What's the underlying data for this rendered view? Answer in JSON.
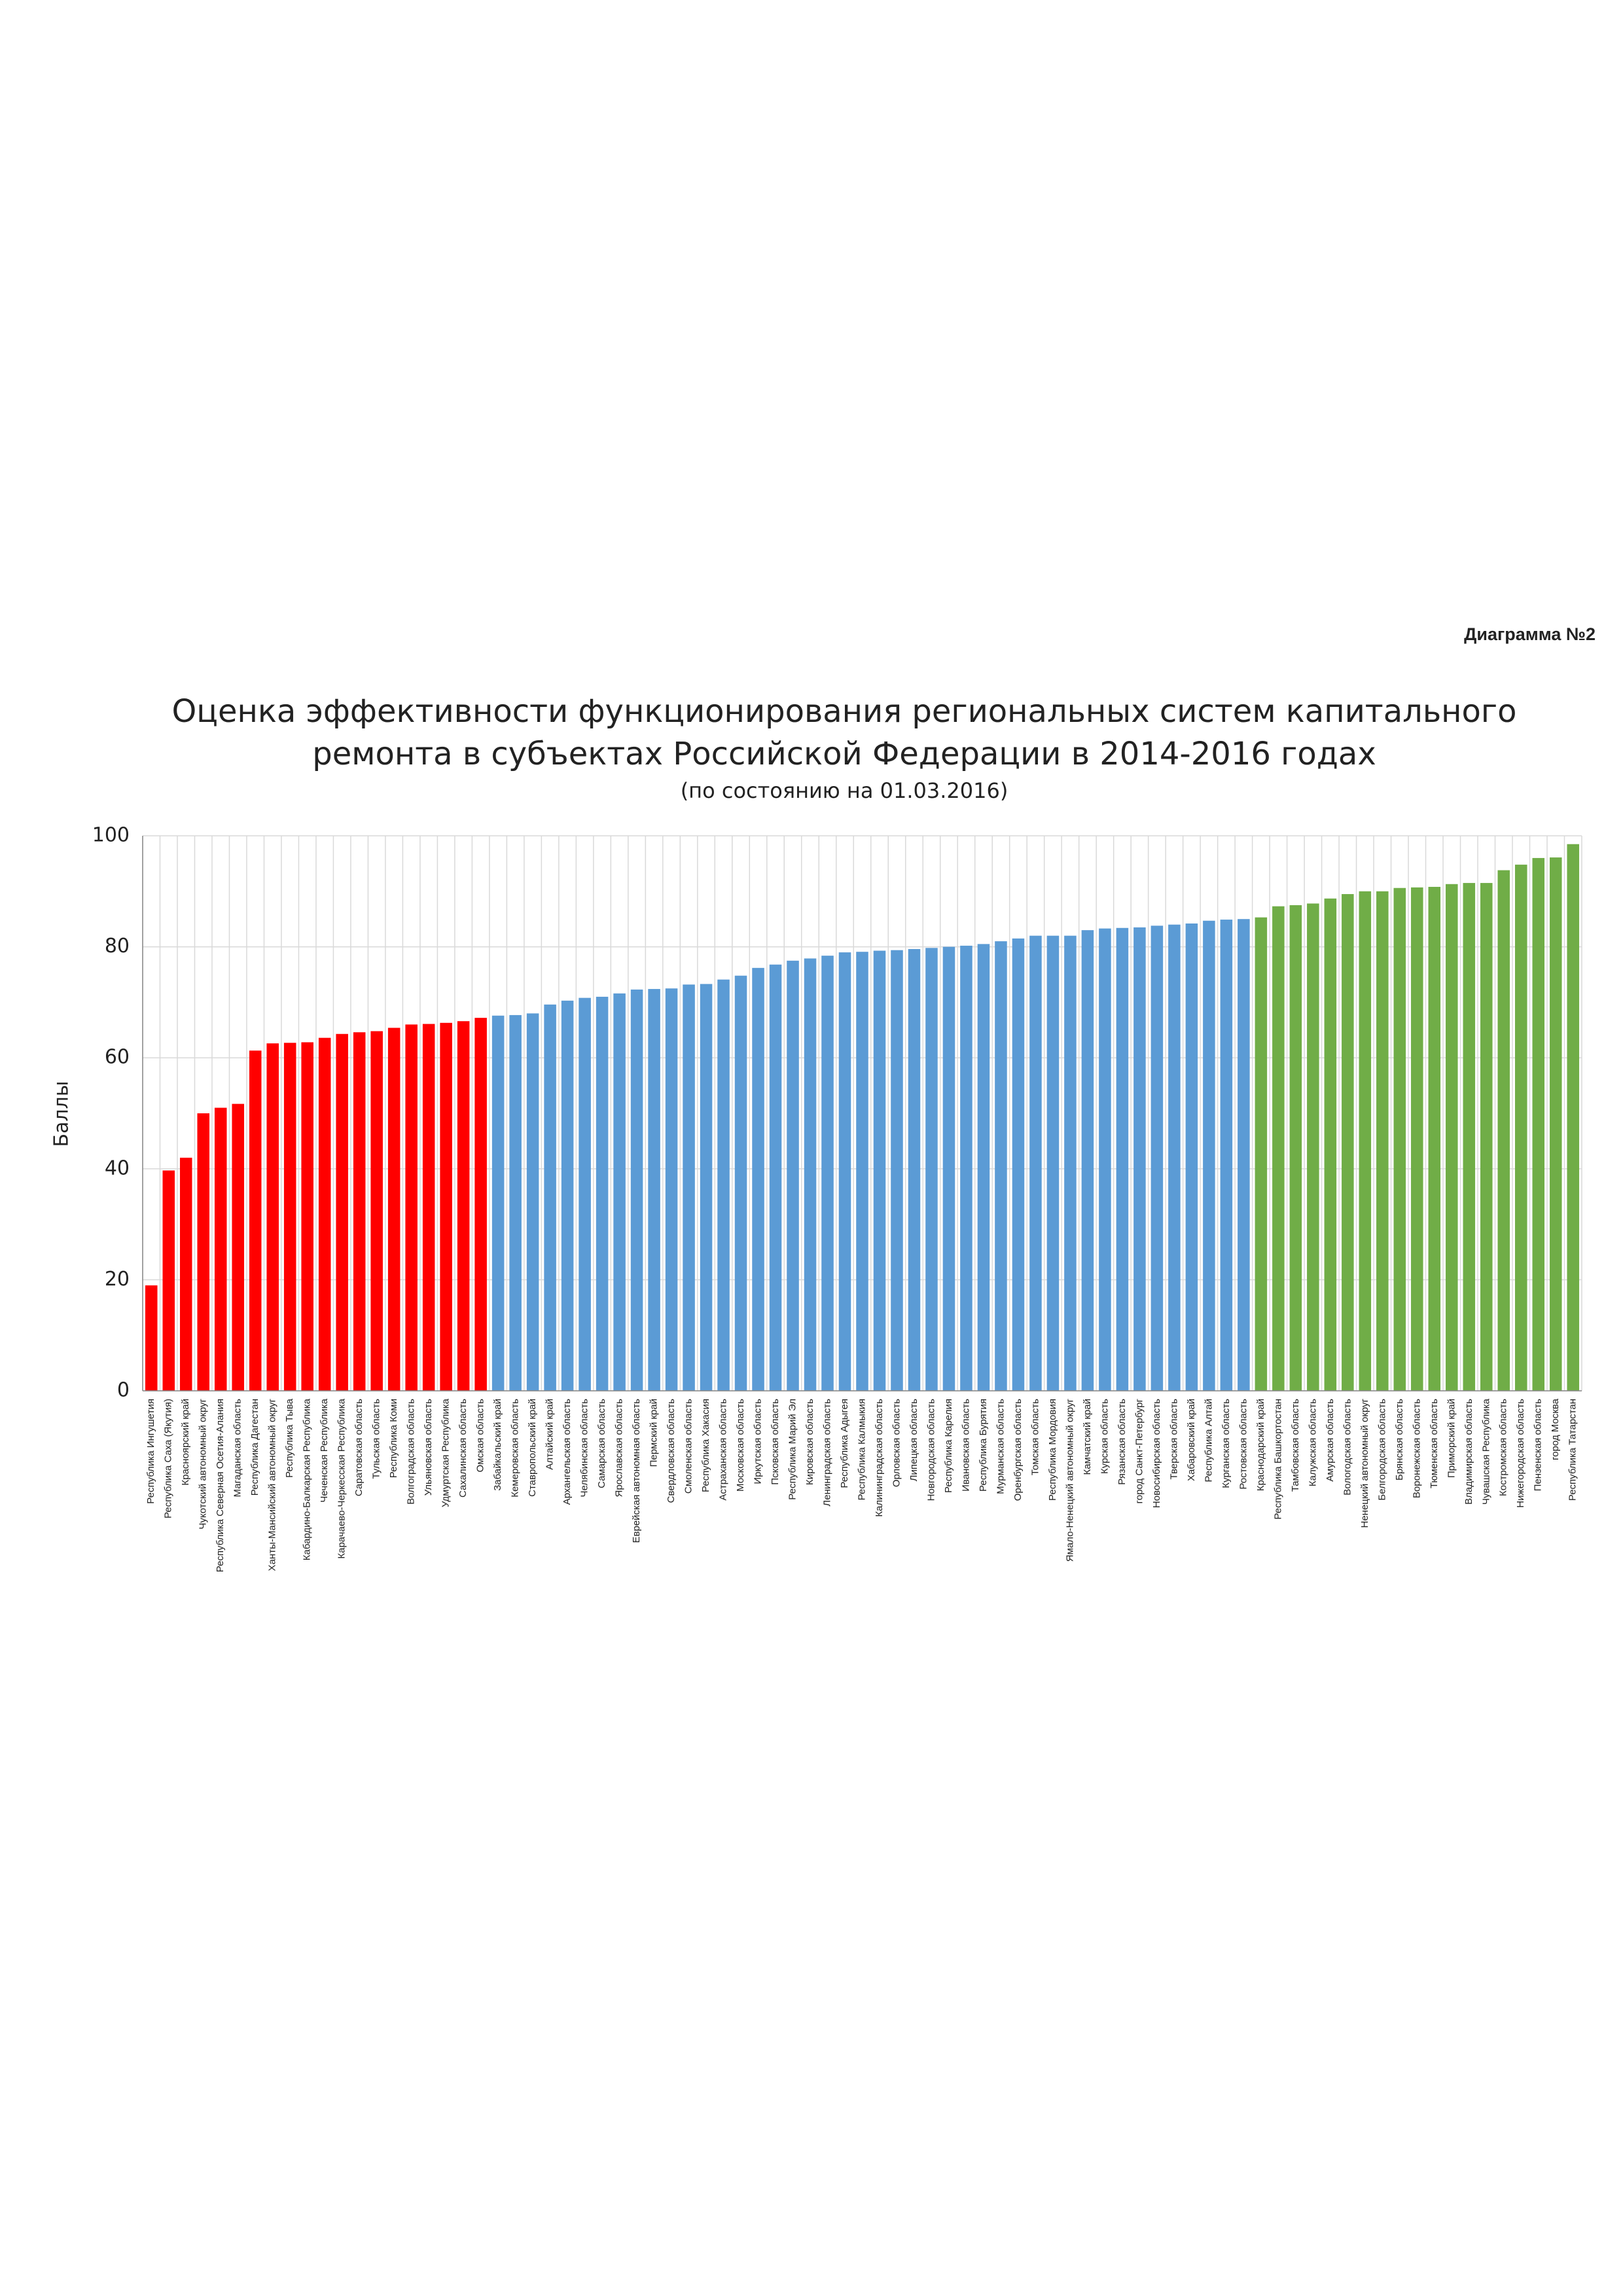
{
  "chart_data": {
    "type": "bar",
    "label": "Диаграмма №2",
    "title": [
      "Оценка эффективности функционирования региональных систем капитального",
      "ремонта в субъектах Российской Федерации в 2014-2016 годах"
    ],
    "subtitle": "(по состоянию на 01.03.2016)",
    "y_label": "Баллы",
    "categories": [
      "Республика Ингушетия",
      "Республика Саха (Якутия)",
      "Красноярский край",
      "Чукотский автономный округ",
      "Республика Северная Осетия-Алания",
      "Магаданская область",
      "Республика Дагестан",
      "Ханты-Мансийский автономный округ",
      "Республика Тыва",
      "Кабардино-Балкарская Республика",
      "Чеченская Республика",
      "Карачаево-Черкесская Республика",
      "Саратовская область",
      "Тульская область",
      "Республика Коми",
      "Волгоградская область",
      "Ульяновская область",
      "Удмуртская Республика",
      "Сахалинская область",
      "Омская область",
      "Забайкальский край",
      "Кемеровская область",
      "Ставропольский край",
      "Алтайский край",
      "Архангельская область",
      "Челябинская область",
      "Самарская область",
      "Ярославская область",
      "Еврейская автономная область",
      "Пермский край",
      "Свердловская область",
      "Смоленская область",
      "Республика Хакасия",
      "Астраханская область",
      "Московская область",
      "Иркутская область",
      "Псковская область",
      "Республика Марий Эл",
      "Кировская область",
      "Ленинградская область",
      "Республика Адыгея",
      "Республика Калмыкия",
      "Калининградская область",
      "Орловская область",
      "Липецкая область",
      "Новгородская область",
      "Республика Карелия",
      "Ивановская область",
      "Республика Бурятия",
      "Мурманская область",
      "Оренбургская область",
      "Томская область",
      "Республика Мордовия",
      "Ямало-Ненецкий автономный округ",
      "Камчатский край",
      "Курская область",
      "Рязанская область",
      "город Санкт-Петербург",
      "Новосибирская область",
      "Тверская область",
      "Хабаровский край",
      "Республика Алтай",
      "Курганская область",
      "Ростовская область",
      "Краснодарский край",
      "Республика Башкортостан",
      "Тамбовская область",
      "Калужская область",
      "Амурская область",
      "Вологодская область",
      "Ненецкий автономный округ",
      "Белгородская область",
      "Брянская область",
      "Воронежская область",
      "Тюменская область",
      "Приморский край",
      "Владимирская область",
      "Чувашская Республика",
      "Костромская область",
      "Нижегородская область",
      "Пензенская область",
      "город Москва",
      "Республика Татарстан"
    ],
    "values": [
      19,
      39.7,
      42,
      50,
      51,
      51.7,
      61.3,
      62.6,
      62.7,
      62.8,
      63.6,
      64.3,
      64.6,
      64.8,
      65.4,
      66,
      66.1,
      66.3,
      66.6,
      67.2,
      67.6,
      67.7,
      68,
      69.6,
      70.3,
      70.8,
      71,
      71.6,
      72.3,
      72.4,
      72.5,
      73.2,
      73.3,
      74.1,
      74.8,
      76.2,
      76.8,
      77.5,
      77.9,
      78.4,
      79,
      79.1,
      79.3,
      79.4,
      79.6,
      79.8,
      80,
      80.2,
      80.5,
      81,
      81.5,
      82,
      82,
      82,
      83,
      83.3,
      83.4,
      83.5,
      83.8,
      84,
      84.2,
      84.7,
      84.9,
      85,
      85.3,
      87.3,
      87.5,
      87.8,
      88.7,
      89.5,
      90,
      90,
      90.6,
      90.7,
      90.8,
      91.3,
      91.5,
      91.5,
      93.8,
      94.8,
      96,
      96.1,
      98.5
    ],
    "colors": [
      "#ff0000",
      "#ff0000",
      "#ff0000",
      "#ff0000",
      "#ff0000",
      "#ff0000",
      "#ff0000",
      "#ff0000",
      "#ff0000",
      "#ff0000",
      "#ff0000",
      "#ff0000",
      "#ff0000",
      "#ff0000",
      "#ff0000",
      "#ff0000",
      "#ff0000",
      "#ff0000",
      "#ff0000",
      "#ff0000",
      "#5b9bd5",
      "#5b9bd5",
      "#5b9bd5",
      "#5b9bd5",
      "#5b9bd5",
      "#5b9bd5",
      "#5b9bd5",
      "#5b9bd5",
      "#5b9bd5",
      "#5b9bd5",
      "#5b9bd5",
      "#5b9bd5",
      "#5b9bd5",
      "#5b9bd5",
      "#5b9bd5",
      "#5b9bd5",
      "#5b9bd5",
      "#5b9bd5",
      "#5b9bd5",
      "#5b9bd5",
      "#5b9bd5",
      "#5b9bd5",
      "#5b9bd5",
      "#5b9bd5",
      "#5b9bd5",
      "#5b9bd5",
      "#5b9bd5",
      "#5b9bd5",
      "#5b9bd5",
      "#5b9bd5",
      "#5b9bd5",
      "#5b9bd5",
      "#5b9bd5",
      "#5b9bd5",
      "#5b9bd5",
      "#5b9bd5",
      "#5b9bd5",
      "#5b9bd5",
      "#5b9bd5",
      "#5b9bd5",
      "#5b9bd5",
      "#5b9bd5",
      "#5b9bd5",
      "#5b9bd5",
      "#70ad47",
      "#70ad47",
      "#70ad47",
      "#70ad47",
      "#70ad47",
      "#70ad47",
      "#70ad47",
      "#70ad47",
      "#70ad47",
      "#70ad47",
      "#70ad47",
      "#70ad47",
      "#70ad47",
      "#70ad47",
      "#70ad47",
      "#70ad47",
      "#70ad47",
      "#70ad47",
      "#70ad47"
    ],
    "ylim": [
      0,
      100
    ],
    "yticks": [
      0,
      20,
      40,
      60,
      80,
      100
    ],
    "grid": true
  }
}
